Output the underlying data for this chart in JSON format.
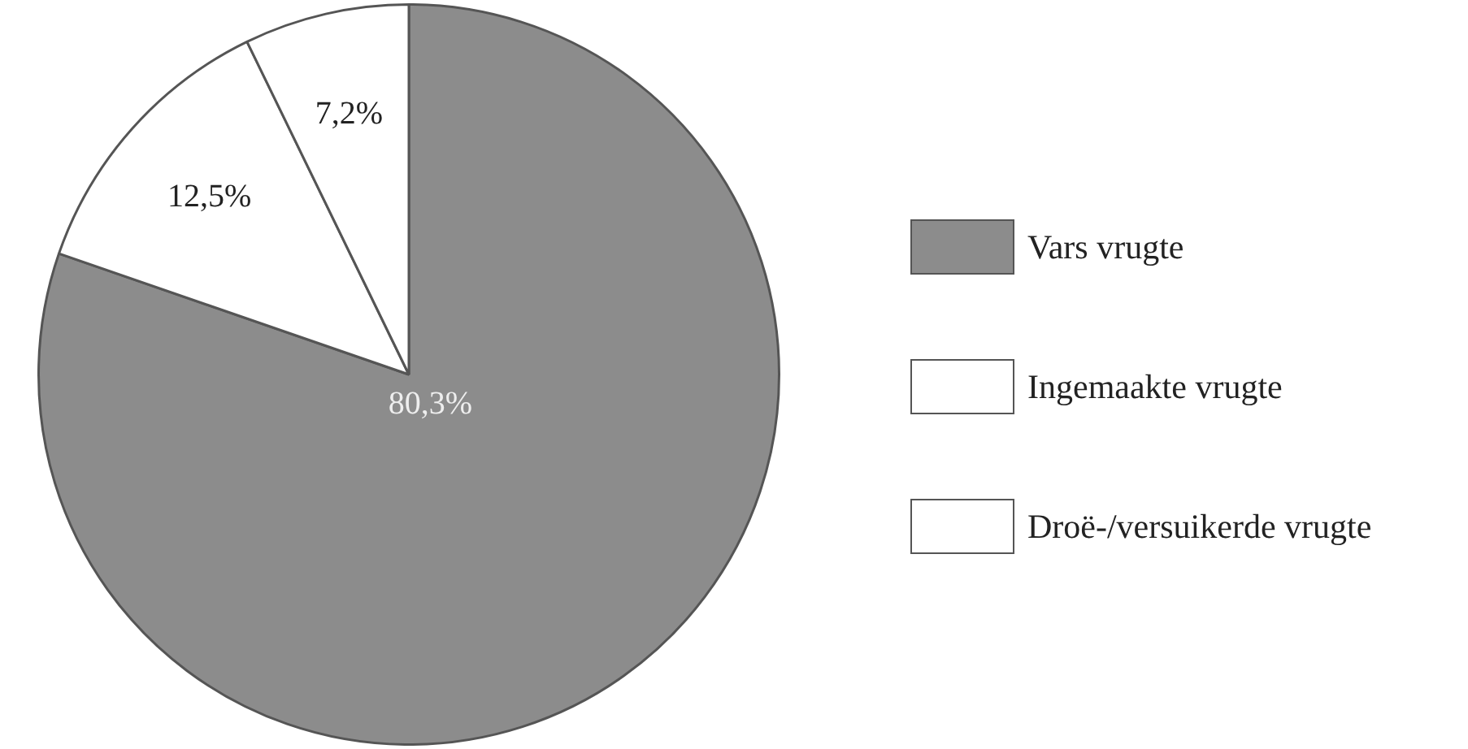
{
  "chart_data": {
    "type": "pie",
    "categories": [
      "Vars vrugte",
      "Ingemaakte vrugte",
      "Droë-/versuikerde vrugte"
    ],
    "values": [
      80.3,
      12.5,
      7.2
    ],
    "colors": [
      "#8c8c8c",
      "#ffffff",
      "#ffffff"
    ],
    "value_labels": [
      "80,3%",
      "12,5%",
      "7,2%"
    ],
    "legend": "right"
  }
}
